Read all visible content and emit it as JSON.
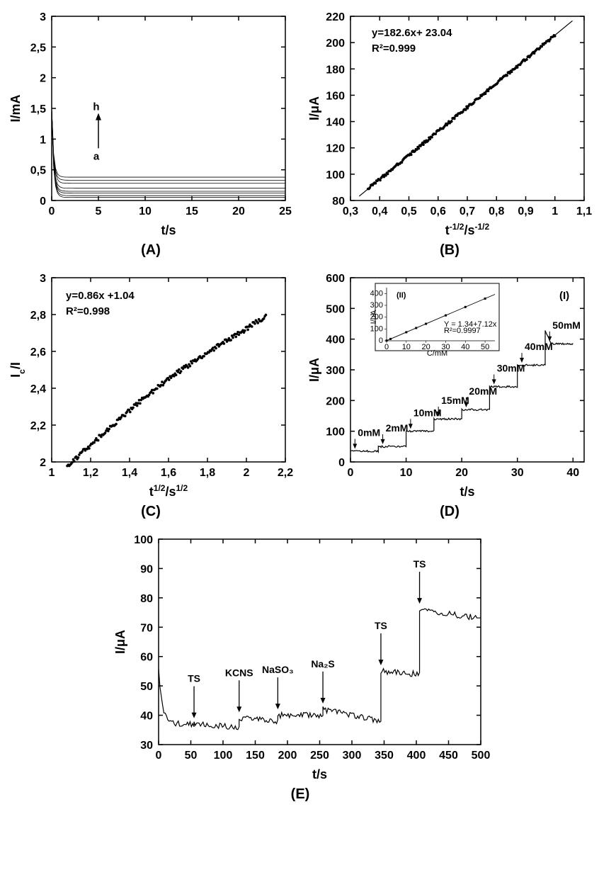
{
  "figure": {
    "background_color": "#ffffff",
    "line_color": "#000000",
    "text_color": "#000000",
    "font_family": "Arial",
    "panels": {
      "A": {
        "type": "line",
        "label": "(A)",
        "x_axis": {
          "title": "t/s",
          "lim": [
            0,
            25
          ],
          "ticks": [
            0,
            5,
            10,
            15,
            20,
            25
          ]
        },
        "y_axis": {
          "title": "I/mA",
          "lim": [
            0,
            3.0
          ],
          "ticks": [
            0.0,
            0.5,
            1.0,
            1.5,
            2.0,
            2.5,
            3.0
          ],
          "decimal_sep": ","
        },
        "annotation": {
          "h_label": "h",
          "a_label": "a",
          "arrow_from": [
            5,
            0.85
          ],
          "arrow_to": [
            5,
            1.4
          ]
        },
        "series_count": 8,
        "series_plateau_values": [
          0.05,
          0.08,
          0.12,
          0.15,
          0.2,
          0.28,
          0.33,
          0.38
        ],
        "series_initial_value": 1.5,
        "series_line_width": 0.8
      },
      "B": {
        "type": "scatter-line",
        "label": "(B)",
        "x_axis": {
          "title": "t^{-1/2}/s^{-1/2}",
          "title_html": "t<tspan baseline-shift='super' font-size='12'>-1/2</tspan>/s<tspan baseline-shift='super' font-size='12'>-1/2</tspan>",
          "lim": [
            0.3,
            1.1
          ],
          "ticks": [
            0.3,
            0.4,
            0.5,
            0.6,
            0.7,
            0.8,
            0.9,
            1.0,
            1.1
          ],
          "decimal_sep": ","
        },
        "y_axis": {
          "title": "I/μA",
          "lim": [
            80,
            220
          ],
          "ticks": [
            80,
            100,
            120,
            140,
            160,
            180,
            200,
            220
          ]
        },
        "fit": {
          "equation": "y=182.6x+ 23.04",
          "r2": "R²=0.999",
          "slope": 182.6,
          "intercept": 23.04
        },
        "scatter_x_range": [
          0.36,
          1.0
        ],
        "scatter_n_points": 200,
        "marker_size": 1.8,
        "line_width": 1.2
      },
      "C": {
        "type": "scatter",
        "label": "(C)",
        "x_axis": {
          "title": "t^{1/2}/s^{1/2}",
          "title_html": "t<tspan baseline-shift='super' font-size='12'>1/2</tspan>/s<tspan baseline-shift='super' font-size='12'>1/2</tspan>",
          "lim": [
            1.0,
            2.2
          ],
          "ticks": [
            1.0,
            1.2,
            1.4,
            1.6,
            1.8,
            2.0,
            2.2
          ],
          "decimal_sep": ","
        },
        "y_axis": {
          "title": "I_c/I",
          "title_html": "I<tspan baseline-shift='sub' font-size='12'>c</tspan>/I",
          "lim": [
            2.0,
            3.0
          ],
          "ticks": [
            2.0,
            2.2,
            2.4,
            2.6,
            2.8,
            3.0
          ],
          "decimal_sep": ","
        },
        "fit": {
          "equation": "y=0.86x +1.04",
          "r2": "R²=0.998"
        },
        "data_x_range": [
          1.08,
          2.1
        ],
        "scatter_n_points": 200,
        "marker_size": 1.8
      },
      "D": {
        "type": "step-line",
        "label": "(D)",
        "panel_tag": "(I)",
        "x_axis": {
          "title": "t/s",
          "lim": [
            0,
            42
          ],
          "ticks": [
            0,
            10,
            20,
            30,
            40
          ]
        },
        "y_axis": {
          "title": "I/μA",
          "lim": [
            0,
            600
          ],
          "ticks": [
            0,
            100,
            200,
            300,
            400,
            500,
            600
          ]
        },
        "steps": [
          {
            "t_start": 0,
            "t_end": 5,
            "I": 35,
            "label": "0mM"
          },
          {
            "t_start": 5,
            "t_end": 10,
            "I": 50,
            "label": "2mM"
          },
          {
            "t_start": 10,
            "t_end": 15,
            "I": 100,
            "label": "10mM"
          },
          {
            "t_start": 15,
            "t_end": 20,
            "I": 140,
            "label": "15mM"
          },
          {
            "t_start": 20,
            "t_end": 25,
            "I": 170,
            "label": "20mM"
          },
          {
            "t_start": 25,
            "t_end": 30,
            "I": 245,
            "label": "30mM"
          },
          {
            "t_start": 30,
            "t_end": 35,
            "I": 315,
            "label": "40mM"
          },
          {
            "t_start": 35,
            "t_end": 40,
            "I": 385,
            "label": "50mM",
            "spike": 430
          }
        ],
        "line_width": 1.2,
        "inset": {
          "tag": "(II)",
          "type": "line",
          "x_axis": {
            "title": "C/mM",
            "lim": [
              0,
              55
            ],
            "ticks": [
              0,
              10,
              20,
              30,
              40,
              50
            ]
          },
          "y_axis": {
            "title": "I/μA",
            "lim": [
              0,
              450
            ],
            "ticks": [
              0,
              100,
              200,
              300,
              400
            ]
          },
          "fit": {
            "equation": "Y = 1.34+7.12x",
            "r2": "R²=0.9997",
            "slope": 7.12,
            "intercept": 1.34
          },
          "points_x": [
            0,
            2,
            10,
            15,
            20,
            30,
            40,
            50
          ]
        }
      },
      "E": {
        "type": "line",
        "label": "(E)",
        "x_axis": {
          "title": "t/s",
          "lim": [
            0,
            500
          ],
          "ticks": [
            0,
            50,
            100,
            150,
            200,
            250,
            300,
            350,
            400,
            450,
            500
          ]
        },
        "y_axis": {
          "title": "I/μA",
          "lim": [
            30,
            100
          ],
          "ticks": [
            30,
            40,
            50,
            60,
            70,
            80,
            90,
            100
          ]
        },
        "injections": [
          {
            "t": 55,
            "label": "TS",
            "I_before": 37,
            "I_after": 37
          },
          {
            "t": 125,
            "label": "KCNS",
            "I_before": 36,
            "I_after": 39
          },
          {
            "t": 185,
            "label": "NaSO₃",
            "I_before": 38,
            "I_after": 40
          },
          {
            "t": 255,
            "label": "Na₂S",
            "I_before": 40,
            "I_after": 42
          },
          {
            "t": 345,
            "label": "TS",
            "I_before": 38,
            "I_after": 55
          },
          {
            "t": 405,
            "label": "TS",
            "I_before": 54,
            "I_after": 76
          }
        ],
        "initial_spike": 55,
        "line_width": 1.2,
        "noise_amp": 1.0
      }
    }
  }
}
